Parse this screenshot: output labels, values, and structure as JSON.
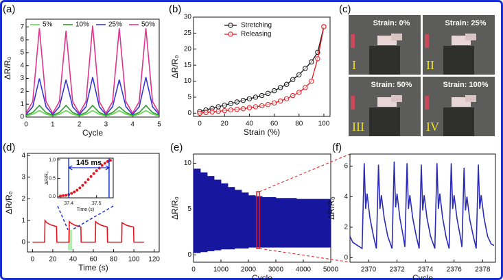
{
  "chart_data": [
    {
      "type": "line",
      "panel": "(a)",
      "x_label": "Cycle",
      "y_label": "ΔR/R₀",
      "legend": "top",
      "xlim": [
        0,
        5
      ],
      "ylim": [
        0,
        7.6
      ],
      "xticks": [
        0,
        1,
        2,
        3,
        4,
        5
      ],
      "yticks": [
        0,
        1,
        2,
        3,
        4,
        5,
        6,
        7
      ],
      "x": [
        0,
        0.25,
        0.5,
        0.75,
        1,
        1.25,
        1.5,
        1.75,
        2,
        2.25,
        2.5,
        2.75,
        3,
        3.25,
        3.5,
        3.75,
        4,
        4.25,
        4.5,
        4.75,
        5
      ],
      "series": [
        {
          "name": "5%",
          "color": "#5fd84a",
          "values": [
            0.1,
            0.22,
            0.5,
            0.22,
            0.1,
            0.22,
            0.5,
            0.22,
            0.1,
            0.22,
            0.5,
            0.22,
            0.1,
            0.22,
            0.5,
            0.22,
            0.1,
            0.22,
            0.5,
            0.22,
            0.1
          ]
        },
        {
          "name": "10%",
          "color": "#2a9a2a",
          "values": [
            0.15,
            0.35,
            0.9,
            0.35,
            0.15,
            0.35,
            0.9,
            0.35,
            0.15,
            0.35,
            0.9,
            0.35,
            0.15,
            0.35,
            0.8,
            0.35,
            0.15,
            0.35,
            0.9,
            0.35,
            0.15
          ]
        },
        {
          "name": "25%",
          "color": "#3535d8",
          "values": [
            0.2,
            0.8,
            3.0,
            0.8,
            0.2,
            0.8,
            2.9,
            0.8,
            0.2,
            0.8,
            3.1,
            0.8,
            0.2,
            0.8,
            2.9,
            0.8,
            0.2,
            0.8,
            3.1,
            0.8,
            0.2
          ]
        },
        {
          "name": "50%",
          "color": "#e0338c",
          "values": [
            0.3,
            1.2,
            6.9,
            1.2,
            0.3,
            1.2,
            6.7,
            1.2,
            0.3,
            1.2,
            7.1,
            1.2,
            0.3,
            1.2,
            6.9,
            1.2,
            0.3,
            1.2,
            6.9,
            1.2,
            0.3
          ]
        }
      ]
    },
    {
      "type": "line",
      "panel": "(b)",
      "x_label": "Strain (%)",
      "y_label": "ΔR/R₀",
      "legend": "upper left",
      "markers": true,
      "xlim": [
        -5,
        105
      ],
      "ylim": [
        -1,
        30
      ],
      "xticks": [
        0,
        20,
        40,
        60,
        80,
        100
      ],
      "yticks": [
        0,
        5,
        10,
        15,
        20,
        25,
        30
      ],
      "x": [
        0,
        5,
        10,
        15,
        20,
        25,
        30,
        35,
        40,
        45,
        50,
        55,
        60,
        65,
        70,
        75,
        80,
        85,
        90,
        95,
        100
      ],
      "series": [
        {
          "name": "Stretching",
          "color": "#111111",
          "values": [
            0.5,
            1,
            1.5,
            2,
            2.5,
            3,
            3.5,
            4,
            4.5,
            5,
            5.5,
            6.2,
            7,
            8,
            9,
            10.5,
            12,
            14,
            16,
            19,
            27
          ]
        },
        {
          "name": "Releasing",
          "color": "#e8141c",
          "values": [
            0,
            0.2,
            0.4,
            0.6,
            0.8,
            1,
            1.2,
            1.4,
            1.7,
            2,
            2.3,
            2.7,
            3.2,
            3.8,
            4.5,
            5.5,
            6.5,
            8,
            10,
            17,
            27
          ]
        }
      ]
    },
    {
      "type": "line",
      "panel": "(d)",
      "x_label": "Time (s)",
      "y_label": "ΔR/R₀",
      "highlight": [
        35,
        39
      ],
      "xlim": [
        -5,
        125
      ],
      "ylim": [
        -0.45,
        4.1
      ],
      "xticks": [
        0,
        20,
        40,
        60,
        80,
        100,
        120
      ],
      "yticks": [
        0,
        1,
        2,
        3,
        4
      ],
      "x": [
        0,
        12,
        12.3,
        14,
        18,
        23.7,
        24,
        36,
        36.3,
        38,
        42,
        47.7,
        48,
        62,
        62.3,
        64,
        68,
        73.7,
        74,
        88,
        88.3,
        90,
        94,
        99.7,
        100,
        110
      ],
      "series": [
        {
          "color": "#e8141c",
          "values": [
            0,
            0,
            1.0,
            0.9,
            0.8,
            0.72,
            0,
            0,
            0.95,
            0.88,
            0.78,
            0.7,
            0,
            0,
            0.95,
            0.88,
            0.78,
            0.7,
            0,
            0,
            0.9,
            0.85,
            0.76,
            0.7,
            0,
            0
          ]
        }
      ]
    },
    {
      "type": "scatter",
      "x_label": "Time (s)",
      "y_label": "ΔR/R₀",
      "annotation": "145 ms",
      "span": [
        37.4,
        37.545
      ],
      "xlim": [
        37.36,
        37.56
      ],
      "ylim": [
        -0.03,
        1.05
      ],
      "xticks": [
        37.4,
        37.5
      ],
      "yticks": [
        {
          "value": 0,
          "label": "0.0"
        },
        0.5,
        {
          "value": 1,
          "label": "1.0"
        }
      ],
      "x": [
        37.37,
        37.38,
        37.39,
        37.4,
        37.41,
        37.42,
        37.43,
        37.44,
        37.45,
        37.46,
        37.47,
        37.48,
        37.49,
        37.5,
        37.51,
        37.52,
        37.53,
        37.54,
        37.55
      ],
      "series": [
        {
          "color": "#e8141c",
          "values": [
            0.02,
            0.03,
            0.04,
            0.06,
            0.09,
            0.13,
            0.18,
            0.24,
            0.31,
            0.39,
            0.47,
            0.55,
            0.63,
            0.71,
            0.78,
            0.85,
            0.91,
            0.96,
            0.99
          ]
        }
      ]
    },
    {
      "type": "band",
      "panel": "(e)",
      "x_label": "Cycle",
      "y_label": "ΔR/R₀",
      "color": "#16169e",
      "highlight": [
        2300,
        2400
      ],
      "xlim": [
        0,
        5000
      ],
      "ylim": [
        -0.8,
        11
      ],
      "xticks": [
        0,
        1000,
        2000,
        3000,
        4000,
        5000
      ],
      "yticks": [
        0,
        5,
        10
      ],
      "x": [
        0,
        250,
        500,
        750,
        1000,
        1250,
        1500,
        1750,
        2000,
        2250,
        2500,
        2750,
        3000,
        3250,
        3500,
        3750,
        4000,
        4250,
        4500,
        4750,
        5000
      ],
      "upper": [
        9.4,
        9.0,
        8.6,
        8.2,
        7.8,
        7.4,
        7.1,
        6.8,
        6.5,
        6.4,
        6.3,
        6.3,
        6.2,
        6.2,
        6.2,
        6.1,
        6.1,
        6.1,
        6.1,
        6.1,
        6.1
      ],
      "lower": [
        0.2,
        0.3,
        0.4,
        0.5,
        0.6,
        0.6,
        0.7,
        0.7,
        0.8,
        0.8,
        0.8,
        0.8,
        0.8,
        0.8,
        0.8,
        0.8,
        0.8,
        0.8,
        0.8,
        0.8,
        0.8
      ]
    },
    {
      "type": "line",
      "panel": "(f)",
      "x_label": "Cycle",
      "y_label": "ΔR/R₀",
      "xlim": [
        2368.7,
        2378.9
      ],
      "ylim": [
        -0.3,
        6.8
      ],
      "xticks": [
        2370,
        2372,
        2374,
        2376,
        2378
      ],
      "yticks": [
        0,
        2,
        4,
        6
      ],
      "x": [
        2368.7,
        2368.9,
        2369.55,
        2369.7,
        2369.8,
        2369.9,
        2370.1,
        2370.35,
        2370.55,
        2370.7,
        2370.8,
        2370.9,
        2371.1,
        2371.35,
        2371.65,
        2371.8,
        2371.9,
        2372.0,
        2372.2,
        2372.45,
        2372.55,
        2372.7,
        2372.8,
        2372.9,
        2373.1,
        2373.35,
        2373.55,
        2373.7,
        2373.8,
        2373.9,
        2374.1,
        2374.35,
        2374.65,
        2374.8,
        2374.9,
        2375.0,
        2375.2,
        2375.45,
        2375.65,
        2375.8,
        2375.9,
        2376.0,
        2376.2,
        2376.45,
        2376.55,
        2376.7,
        2376.8,
        2376.9,
        2377.1,
        2377.35,
        2377.55,
        2377.7,
        2377.8,
        2377.9,
        2378.1,
        2378.35,
        2378.6,
        2378.8
      ],
      "series": [
        {
          "color": "#2a2ab5",
          "values": [
            1.4,
            1.0,
            0.6,
            6.2,
            3.2,
            4.2,
            2.6,
            1.4,
            0.6,
            6.1,
            3.2,
            4.1,
            2.6,
            1.4,
            0.6,
            6.3,
            3.3,
            4.2,
            2.6,
            1.3,
            0.7,
            6.2,
            3.2,
            4.1,
            2.6,
            1.4,
            0.6,
            6.1,
            3.1,
            4.1,
            2.6,
            1.4,
            0.6,
            6.2,
            3.2,
            4.2,
            2.6,
            1.3,
            0.6,
            6.2,
            3.2,
            4.1,
            2.6,
            1.3,
            0.7,
            5.9,
            3.1,
            4.0,
            2.5,
            1.4,
            0.6,
            6.1,
            3.2,
            4.1,
            2.6,
            1.4,
            0.9,
            0.8
          ]
        }
      ]
    }
  ],
  "photos": {
    "panel": "(c)",
    "items": [
      {
        "strain": "Strain: 0%",
        "numeral": "I"
      },
      {
        "strain": "Strain: 25%",
        "numeral": "II"
      },
      {
        "strain": "Strain: 50%",
        "numeral": "III"
      },
      {
        "strain": "Strain: 100%",
        "numeral": "IV"
      }
    ]
  }
}
